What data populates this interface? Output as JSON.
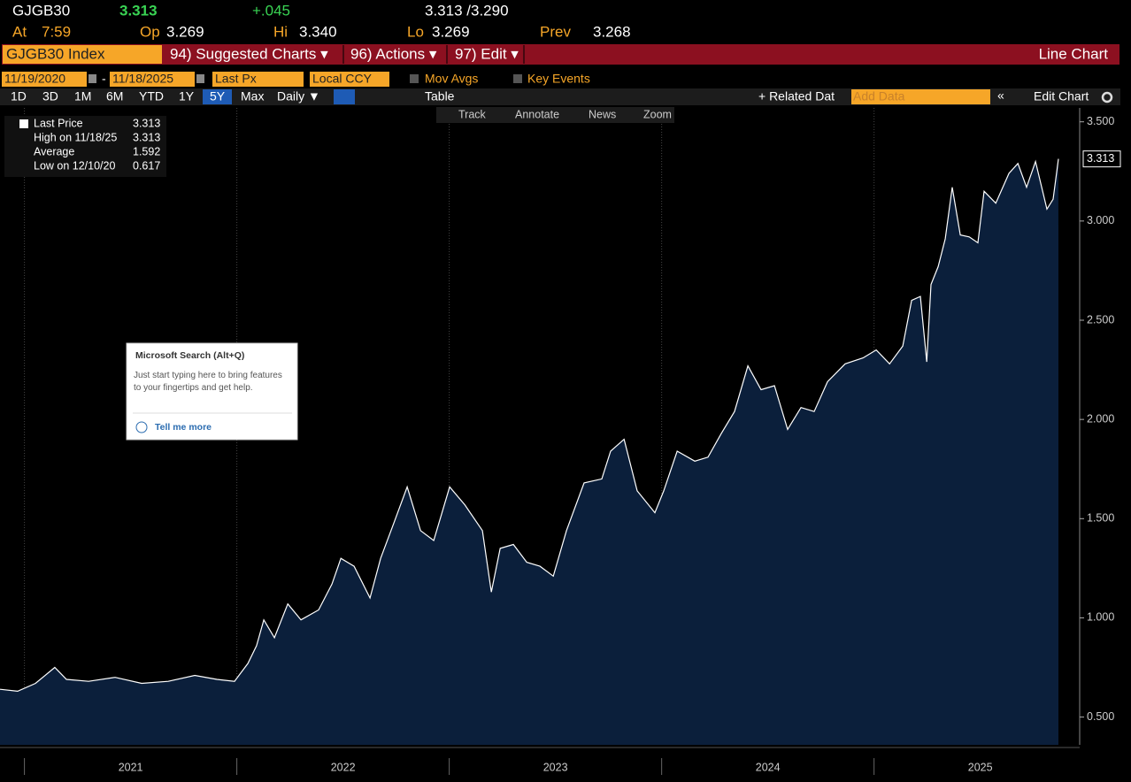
{
  "header": {
    "ticker": "GJGB30",
    "last": "3.313",
    "change": "+.045",
    "bid_ask": "3.313 /3.290",
    "stats": [
      {
        "label": "At",
        "value": "7:59"
      },
      {
        "label": "Op",
        "value": "3.269"
      },
      {
        "label": "Hi",
        "value": "3.340"
      },
      {
        "label": "Lo",
        "value": "3.269"
      },
      {
        "label": "Prev",
        "value": "3.268"
      }
    ]
  },
  "menu": {
    "security": "GJGB30 Index",
    "items": [
      "94) Suggested Charts ▾",
      "96) Actions ▾",
      "97) Edit ▾"
    ],
    "view": "Line Chart"
  },
  "controls": {
    "start_date": "11/19/2020",
    "separator": "-",
    "end_date": "11/18/2025",
    "field": "Last Px",
    "currency": "Local CCY",
    "mov_avgs": "Mov Avgs",
    "key_events": "Key Events",
    "periods": [
      "1D",
      "3D",
      "1M",
      "6M",
      "YTD",
      "1Y",
      "5Y",
      "Max"
    ],
    "frequency": "Daily ▼",
    "table": "Table",
    "related": "+ Related Dat",
    "add_data": "Add Data",
    "collapse": "«",
    "edit_chart": "Edit Chart"
  },
  "tools": [
    "Track",
    "Annotate",
    "News",
    "Zoom"
  ],
  "legend": [
    {
      "label": "Last Price",
      "value": "3.313"
    },
    {
      "label": "High on 11/18/25",
      "value": "3.313"
    },
    {
      "label": "Average",
      "value": "1.592"
    },
    {
      "label": "Low on 12/10/20",
      "value": "0.617"
    }
  ],
  "popup": {
    "title": "Microsoft Search (Alt+Q)",
    "body": "Just start typing here to bring features to your fingertips and get help.",
    "link": "Tell me more"
  },
  "chart_data": {
    "type": "area",
    "x": [
      2020.885,
      2020.968,
      2021.052,
      2021.143,
      2021.198,
      2021.302,
      2021.427,
      2021.552,
      2021.677,
      2021.802,
      2021.906,
      2021.989,
      2022.052,
      2022.093,
      2022.127,
      2022.177,
      2022.24,
      2022.302,
      2022.385,
      2022.448,
      2022.49,
      2022.552,
      2022.627,
      2022.677,
      2022.74,
      2022.802,
      2022.865,
      2022.927,
      2023.002,
      2023.073,
      2023.156,
      2023.198,
      2023.24,
      2023.302,
      2023.365,
      2023.427,
      2023.49,
      2023.552,
      2023.635,
      2023.718,
      2023.76,
      2023.823,
      2023.885,
      2023.968,
      2024.01,
      2024.073,
      2024.156,
      2024.218,
      2024.281,
      2024.343,
      2024.406,
      2024.468,
      2024.531,
      2024.593,
      2024.656,
      2024.718,
      2024.781,
      2024.864,
      2024.948,
      2025.01,
      2025.073,
      2025.135,
      2025.177,
      2025.218,
      2025.248,
      2025.268,
      2025.302,
      2025.335,
      2025.368,
      2025.406,
      2025.448,
      2025.489,
      2025.518,
      2025.573,
      2025.635,
      2025.677,
      2025.718,
      2025.76,
      2025.814,
      2025.843,
      2025.868
    ],
    "series": [
      {
        "name": "Last Price",
        "color": "#ffffff",
        "fill": "#0b1f3b",
        "values": [
          0.64,
          0.63,
          0.67,
          0.75,
          0.69,
          0.68,
          0.7,
          0.67,
          0.68,
          0.71,
          0.69,
          0.68,
          0.77,
          0.86,
          0.99,
          0.9,
          1.07,
          0.99,
          1.04,
          1.17,
          1.3,
          1.26,
          1.1,
          1.3,
          1.48,
          1.66,
          1.44,
          1.39,
          1.66,
          1.57,
          1.44,
          1.13,
          1.35,
          1.37,
          1.28,
          1.26,
          1.21,
          1.44,
          1.68,
          1.7,
          1.84,
          1.9,
          1.64,
          1.53,
          1.64,
          1.84,
          1.79,
          1.81,
          1.93,
          2.04,
          2.27,
          2.15,
          2.17,
          1.95,
          2.06,
          2.04,
          2.19,
          2.28,
          2.31,
          2.35,
          2.28,
          2.37,
          2.6,
          2.62,
          2.29,
          2.68,
          2.77,
          2.91,
          3.17,
          2.93,
          2.92,
          2.89,
          3.15,
          3.09,
          3.24,
          3.29,
          3.17,
          3.3,
          3.06,
          3.11,
          3.313
        ]
      }
    ],
    "xlim": [
      2020.885,
      2025.968
    ],
    "xticks": [
      2021,
      2022,
      2023,
      2024,
      2025
    ],
    "ylim": [
      0.36,
      3.57
    ],
    "yticks": [
      {
        "value": 0.5,
        "label": "0.500"
      },
      {
        "value": 1,
        "label": "1.000"
      },
      {
        "value": 1.5,
        "label": "1.500"
      },
      {
        "value": 2,
        "label": "2.000"
      },
      {
        "value": 2.5,
        "label": "2.500"
      },
      {
        "value": 3,
        "label": "3.000"
      },
      {
        "value": 3.5,
        "label": "3.500"
      }
    ],
    "grid": "x"
  }
}
